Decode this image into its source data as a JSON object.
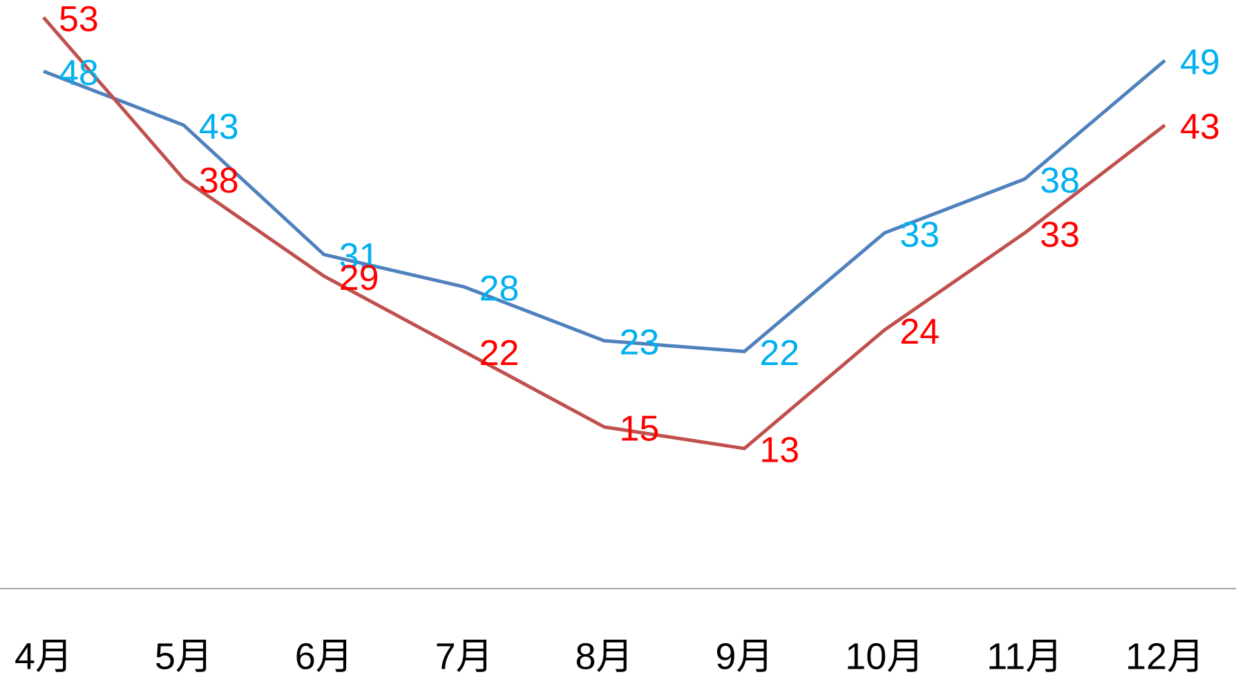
{
  "chart_data": {
    "type": "line",
    "categories": [
      "4月",
      "5月",
      "6月",
      "7月",
      "8月",
      "9月",
      "10月",
      "11月",
      "12月"
    ],
    "series": [
      {
        "color": "#4f81bd",
        "label_color": "#00b0f0",
        "values": [
          48,
          43,
          31,
          28,
          23,
          22,
          33,
          38,
          49
        ]
      },
      {
        "color": "#c0504d",
        "label_color": "#ff0000",
        "values": [
          53,
          38,
          29,
          22,
          15,
          13,
          24,
          33,
          43
        ]
      }
    ],
    "ylim": [
      0,
      55
    ]
  }
}
